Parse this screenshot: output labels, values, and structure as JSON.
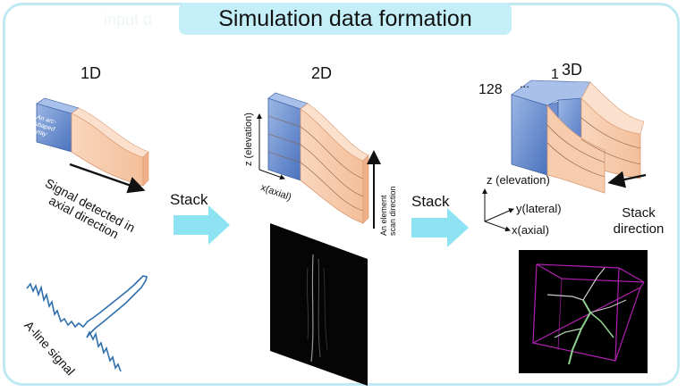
{
  "title": "Simulation data formation",
  "faint_text": "input d",
  "panels": {
    "p1": {
      "label": "1D",
      "array_label": "An arc-shaped array",
      "signal_label": "Signal detected in axial direction",
      "aline_label": "A-line signal"
    },
    "p2": {
      "label": "2D",
      "axis_z": "z (elevation)",
      "axis_x": "x(axial)",
      "scan_label": "An element scan direction"
    },
    "p3": {
      "label": "3D",
      "idx_128": "128",
      "idx_dots": "...",
      "idx_1": "1",
      "axis_z": "z (elevation)",
      "axis_y": "y(lateral)",
      "axis_x": "x(axial)",
      "stack_dir": "Stack direction"
    }
  },
  "arrows": {
    "stack1": "Stack",
    "stack2": "Stack"
  },
  "colors": {
    "frame": "#bfe9f3",
    "title_bg": "#c4eef8",
    "arrow": "#8ee3f2",
    "blue": "#6b8fcf",
    "peach": "#f6c8a7",
    "signal": "#2f6fae",
    "skeleton": "#9fcf9f",
    "box": "#c020c0"
  }
}
